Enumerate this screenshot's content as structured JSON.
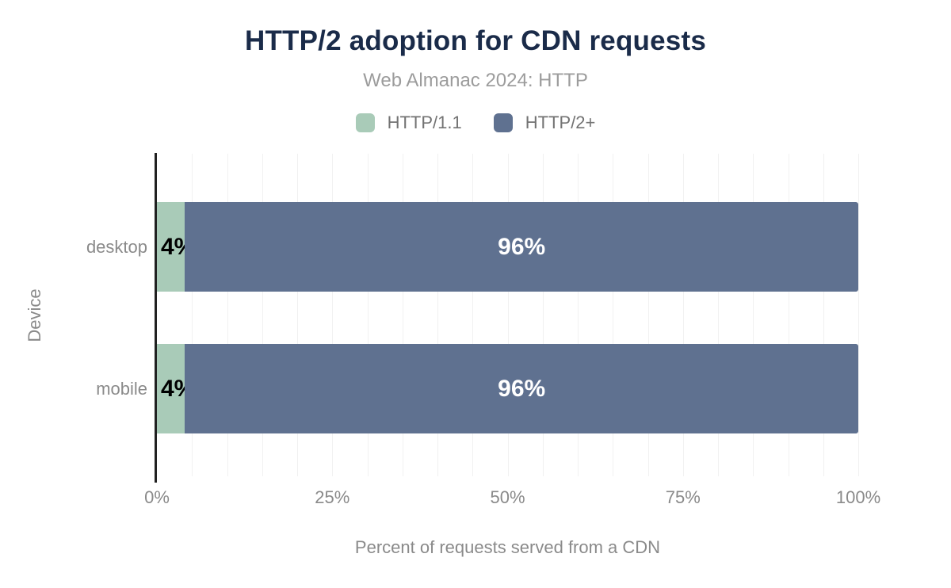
{
  "chart_data": {
    "type": "bar",
    "orientation": "horizontal",
    "stacked": true,
    "title": "HTTP/2 adoption for CDN requests",
    "subtitle": "Web Almanac 2024: HTTP",
    "xlabel": "Percent of requests served from a CDN",
    "ylabel": "Device",
    "categories": [
      "desktop",
      "mobile"
    ],
    "series": [
      {
        "name": "HTTP/1.1",
        "color": "#a9cbb8",
        "values": [
          4,
          4
        ],
        "labels": [
          "4%",
          "4%"
        ],
        "label_color": "#000000",
        "label_halo": "#a9cbb8",
        "label_align": "start"
      },
      {
        "name": "HTTP/2+",
        "color": "#5f7190",
        "values": [
          96,
          96
        ],
        "labels": [
          "96%",
          "96%"
        ],
        "label_color": "#ffffff",
        "label_halo": "",
        "label_align": "center"
      }
    ],
    "xlim": [
      0,
      100
    ],
    "xticks": [
      {
        "value": 0,
        "label": "0%"
      },
      {
        "value": 25,
        "label": "25%"
      },
      {
        "value": 50,
        "label": "50%"
      },
      {
        "value": 75,
        "label": "75%"
      },
      {
        "value": 100,
        "label": "100%"
      }
    ],
    "grid": {
      "show": true,
      "interval": 5,
      "color": "#f1f1f1"
    },
    "legend_position": "top",
    "colors": {
      "background": "#ffffff",
      "title": "#1a2b49",
      "subtitle": "#9c9c9c",
      "axis_title": "#8a8a8a",
      "tick_label": "#8a8a8a",
      "category_label": "#8a8a8a",
      "legend_label": "#737373",
      "axis_line": "#212121"
    }
  }
}
